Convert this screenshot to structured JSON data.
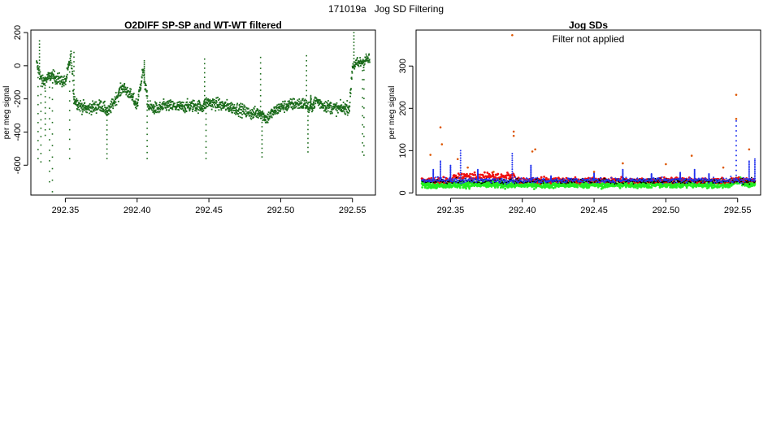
{
  "super_title": "171019a   Jog SD Filtering",
  "colors": {
    "o2diff_points": "#1a6b1a",
    "sd_red": "#ee1111",
    "sd_blue": "#2233ee",
    "sd_green": "#22ee22",
    "sd_black": "#000000",
    "sd_orange": "#dd5500"
  },
  "chart_data": [
    {
      "type": "scatter",
      "title": "O2DIFF SP-SP and WT-WT filtered",
      "xlabel": "",
      "ylabel": "per meg signal",
      "xlim": [
        292.326,
        292.566
      ],
      "ylim": [
        -780,
        215
      ],
      "xticks": [
        292.35,
        292.4,
        292.45,
        292.5,
        292.55
      ],
      "xtick_labels": [
        "292.35",
        "292.40",
        "292.45",
        "292.50",
        "292.55"
      ],
      "yticks": [
        -600,
        -400,
        -200,
        0,
        200
      ],
      "ytick_labels": [
        "-600",
        "-400",
        "-200",
        "0",
        "200"
      ],
      "series": [
        {
          "color": "o2diff_points",
          "baseline": [
            [
              292.33,
              10
            ],
            [
              292.334,
              -100
            ],
            [
              292.34,
              -60
            ],
            [
              292.345,
              -80
            ],
            [
              292.35,
              -100
            ],
            [
              292.354,
              60
            ],
            [
              292.356,
              -200
            ],
            [
              292.36,
              -240
            ],
            [
              292.365,
              -260
            ],
            [
              292.37,
              -250
            ],
            [
              292.375,
              -240
            ],
            [
              292.38,
              -280
            ],
            [
              292.385,
              -200
            ],
            [
              292.39,
              -130
            ],
            [
              292.395,
              -170
            ],
            [
              292.4,
              -240
            ],
            [
              292.404,
              -30
            ],
            [
              292.408,
              -250
            ],
            [
              292.415,
              -260
            ],
            [
              292.42,
              -240
            ],
            [
              292.43,
              -250
            ],
            [
              292.44,
              -240
            ],
            [
              292.446,
              -250
            ],
            [
              292.448,
              -220
            ],
            [
              292.455,
              -230
            ],
            [
              292.46,
              -240
            ],
            [
              292.47,
              -260
            ],
            [
              292.48,
              -290
            ],
            [
              292.486,
              -280
            ],
            [
              292.49,
              -320
            ],
            [
              292.495,
              -280
            ],
            [
              292.5,
              -250
            ],
            [
              292.51,
              -230
            ],
            [
              292.517,
              -230
            ],
            [
              292.52,
              -260
            ],
            [
              292.525,
              -210
            ],
            [
              292.53,
              -240
            ],
            [
              292.54,
              -260
            ],
            [
              292.548,
              -250
            ],
            [
              292.55,
              0
            ],
            [
              292.556,
              20
            ],
            [
              292.56,
              40
            ],
            [
              292.563,
              30
            ]
          ],
          "spikes": [
            [
              292.331,
              -560
            ],
            [
              292.333,
              -580
            ],
            [
              292.336,
              -420
            ],
            [
              292.339,
              -700
            ],
            [
              292.341,
              -760
            ],
            [
              292.353,
              -560
            ],
            [
              292.356,
              80
            ],
            [
              292.379,
              -560
            ],
            [
              292.405,
              30
            ],
            [
              292.407,
              -560
            ],
            [
              292.447,
              40
            ],
            [
              292.448,
              -560
            ],
            [
              292.486,
              50
            ],
            [
              292.487,
              -550
            ],
            [
              292.489,
              -300
            ],
            [
              292.518,
              60
            ],
            [
              292.519,
              -520
            ],
            [
              292.521,
              -180
            ],
            [
              292.551,
              200
            ],
            [
              292.557,
              -520
            ],
            [
              292.558,
              -540
            ],
            [
              292.332,
              150
            ]
          ]
        }
      ]
    },
    {
      "type": "scatter",
      "title": "Jog SDs",
      "annotation": "Filter not applied",
      "xlabel": "",
      "ylabel": "per meg signal",
      "xlim": [
        292.326,
        292.566
      ],
      "ylim": [
        -5,
        385
      ],
      "xticks": [
        292.35,
        292.4,
        292.45,
        292.5,
        292.55
      ],
      "xtick_labels": [
        "292.35",
        "292.40",
        "292.45",
        "292.50",
        "292.55"
      ],
      "yticks": [
        0,
        100,
        200,
        300
      ],
      "ytick_labels": [
        "0",
        "100",
        "200",
        "300"
      ],
      "series": [
        {
          "color": "sd_green",
          "level": 20
        },
        {
          "color": "sd_red",
          "level": 30
        },
        {
          "color": "sd_black",
          "level": 28
        },
        {
          "color": "sd_blue",
          "level": 30,
          "spikes": [
            [
              292.338,
              55
            ],
            [
              292.343,
              75
            ],
            [
              292.35,
              65
            ],
            [
              292.357,
              100
            ],
            [
              292.369,
              55
            ],
            [
              292.393,
              93
            ],
            [
              292.406,
              65
            ],
            [
              292.42,
              40
            ],
            [
              292.45,
              50
            ],
            [
              292.47,
              55
            ],
            [
              292.49,
              45
            ],
            [
              292.51,
              48
            ],
            [
              292.52,
              55
            ],
            [
              292.53,
              45
            ],
            [
              292.549,
              170
            ],
            [
              292.558,
              75
            ],
            [
              292.562,
              80
            ]
          ]
        },
        {
          "color": "sd_orange",
          "points": [
            [
              292.393,
              373
            ],
            [
              292.343,
              155
            ],
            [
              292.394,
              145
            ],
            [
              292.394,
              135
            ],
            [
              292.549,
              232
            ],
            [
              292.549,
              175
            ],
            [
              292.344,
              115
            ],
            [
              292.336,
              90
            ],
            [
              292.407,
              98
            ],
            [
              292.409,
              103
            ],
            [
              292.558,
              103
            ],
            [
              292.518,
              88
            ],
            [
              292.47,
              70
            ],
            [
              292.5,
              68
            ],
            [
              292.355,
              80
            ],
            [
              292.362,
              60
            ],
            [
              292.38,
              50
            ],
            [
              292.45,
              50
            ],
            [
              292.54,
              60
            ]
          ]
        }
      ]
    }
  ]
}
